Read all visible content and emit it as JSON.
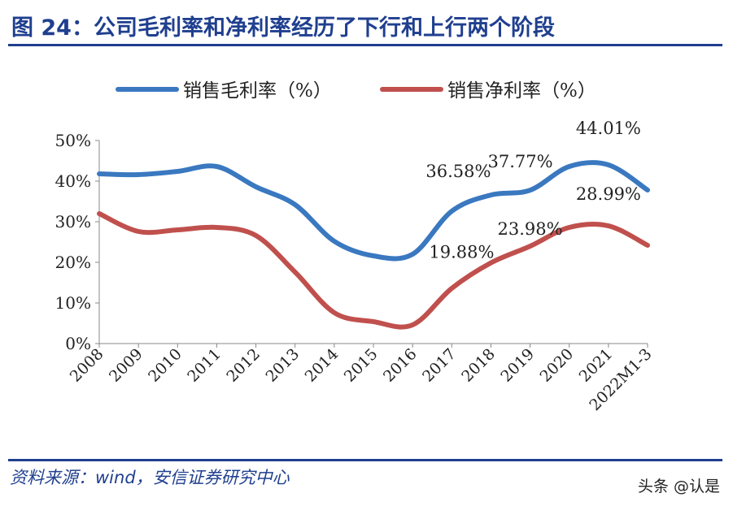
{
  "title": "图 24：公司毛利率和净利率经历了下行和上行两个阶段",
  "source": "资料来源：wind，安信证券研究中心",
  "watermark": "头条 @认是",
  "chart_data": {
    "type": "line",
    "categories": [
      "2008",
      "2009",
      "2010",
      "2011",
      "2012",
      "2013",
      "2014",
      "2015",
      "2016",
      "2017",
      "2018",
      "2019",
      "2020",
      "2021",
      "2022M1-3"
    ],
    "yticks": [
      "0%",
      "10%",
      "20%",
      "30%",
      "40%",
      "50%"
    ],
    "ylim": [
      0,
      50
    ],
    "legend_position": "top",
    "grid": false,
    "series": [
      {
        "name": "销售毛利率（%）",
        "color": "#3a78c0",
        "values": [
          41.8,
          41.6,
          42.4,
          43.6,
          38.6,
          34.2,
          25.2,
          21.6,
          22,
          32.6,
          36.58,
          37.77,
          43.6,
          44.01,
          37.8
        ]
      },
      {
        "name": "销售净利率（%）",
        "color": "#c0504d",
        "values": [
          32,
          27.6,
          28,
          28.6,
          26.6,
          17.6,
          7.6,
          5.4,
          4.6,
          13.6,
          19.88,
          23.98,
          28.6,
          28.99,
          24.2
        ]
      }
    ],
    "annotations": [
      {
        "text": "36.58%",
        "series": 0,
        "category": "2018"
      },
      {
        "text": "37.77%",
        "series": 0,
        "category": "2019"
      },
      {
        "text": "44.01%",
        "series": 0,
        "category": "2021"
      },
      {
        "text": "19.88%",
        "series": 1,
        "category": "2018"
      },
      {
        "text": "23.98%",
        "series": 1,
        "category": "2019"
      },
      {
        "text": "28.99%",
        "series": 1,
        "category": "2021"
      }
    ]
  }
}
